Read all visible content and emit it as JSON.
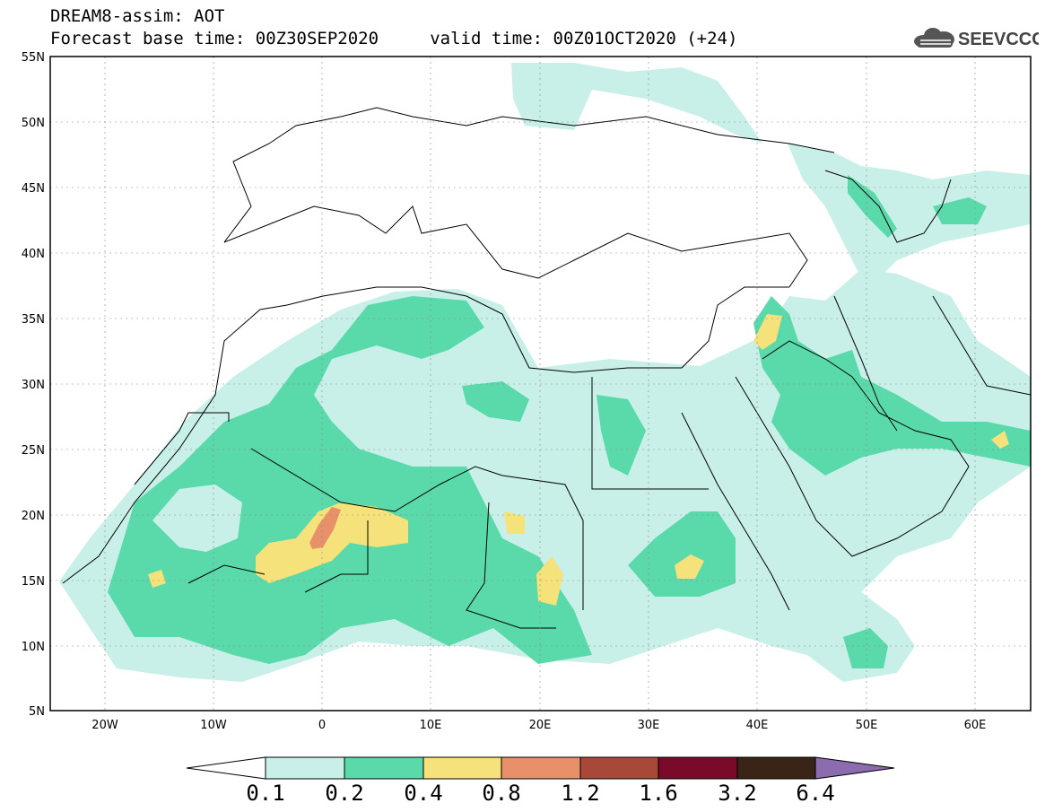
{
  "header": {
    "line1": "DREAM8-assim: AOT",
    "line2": "Forecast base time: 00Z30SEP2020     valid time: 00Z01OCT2020 (+24)"
  },
  "logo": {
    "text": "SEEVCCC",
    "icon": "cloud-icon"
  },
  "axes": {
    "y_ticks": [
      "55N",
      "50N",
      "45N",
      "40N",
      "35N",
      "30N",
      "25N",
      "20N",
      "15N",
      "10N",
      "5N"
    ],
    "x_ticks": [
      "20W",
      "10W",
      "0",
      "10E",
      "20E",
      "30E",
      "40E",
      "50E",
      "60E"
    ],
    "lat_range": [
      5,
      55
    ],
    "lon_range": [
      -25,
      65
    ]
  },
  "colorbar": {
    "labels": [
      "0.1",
      "0.2",
      "0.4",
      "0.8",
      "1.2",
      "1.6",
      "3.2",
      "6.4"
    ],
    "colors": [
      "#ffffff",
      "#c8f0e8",
      "#5ad9aa",
      "#f5e27a",
      "#e8906a",
      "#a84838",
      "#7a0a2a",
      "#3a2416",
      "#8c6cae"
    ]
  },
  "colors": {
    "light_aot": "#c8f0e8",
    "mid_aot": "#5ad9aa",
    "high_aot": "#f5e27a",
    "very_high_aot": "#e8906a"
  }
}
